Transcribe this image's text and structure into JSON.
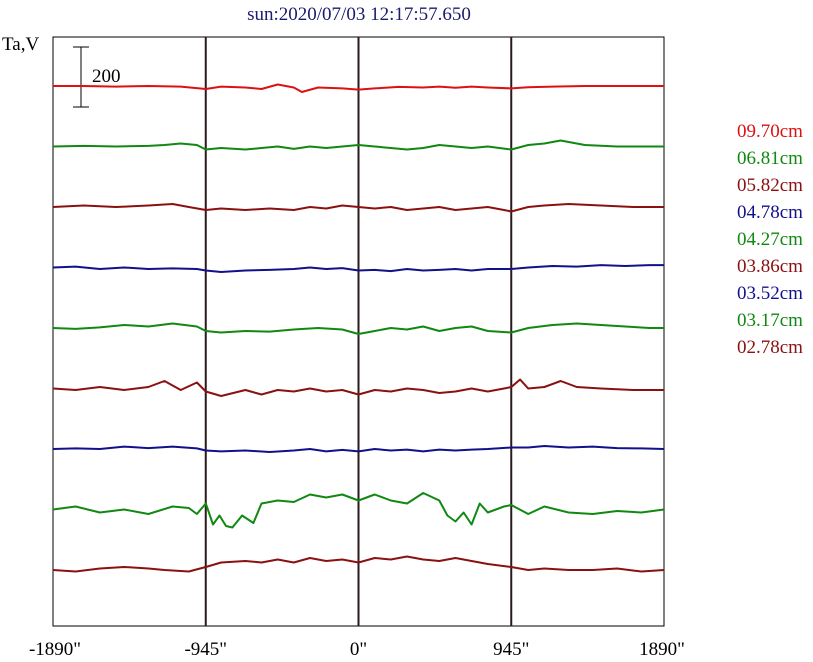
{
  "chart_data": {
    "type": "line",
    "title": "sun:2020/07/03 12:17:57.650",
    "ylabel": "Ta,V",
    "xlabel": "",
    "xlim": [
      -1890,
      1890
    ],
    "x_unit": "arcsec",
    "x_ticks": [
      -1890,
      -945,
      0,
      945,
      1890
    ],
    "x_tick_labels": [
      "-1890\"",
      "-945\"",
      "0\"",
      "945\"",
      "1890\""
    ],
    "vertical_lines_at": [
      -945,
      0,
      945
    ],
    "scale_bar": {
      "label": "200",
      "value": 200
    },
    "legend_position": "right",
    "series": [
      {
        "name": "09.70cm",
        "color": "#dd1111",
        "x": [
          -1890,
          -1700,
          -1500,
          -1300,
          -1100,
          -945,
          -850,
          -700,
          -600,
          -500,
          -400,
          -350,
          -250,
          -100,
          0,
          100,
          250,
          400,
          500,
          600,
          700,
          800,
          945,
          1050,
          1200,
          1400,
          1600,
          1890
        ],
        "y": [
          0,
          0,
          -2,
          0,
          -2,
          -10,
          -2,
          -5,
          -10,
          5,
          -5,
          -20,
          -5,
          -8,
          -12,
          -8,
          -3,
          -5,
          -2,
          -6,
          -2,
          -5,
          -8,
          -4,
          -2,
          0,
          0,
          0
        ]
      },
      {
        "name": "06.81cm",
        "color": "#118811",
        "x": [
          -1890,
          -1700,
          -1500,
          -1300,
          -1200,
          -1100,
          -1000,
          -945,
          -850,
          -700,
          -600,
          -500,
          -400,
          -300,
          -200,
          -100,
          0,
          100,
          200,
          300,
          400,
          500,
          600,
          700,
          800,
          945,
          1050,
          1150,
          1250,
          1400,
          1600,
          1890
        ],
        "y": [
          0,
          2,
          0,
          2,
          5,
          10,
          5,
          -10,
          -5,
          -10,
          -5,
          0,
          -8,
          0,
          -5,
          0,
          5,
          0,
          -5,
          -10,
          -5,
          5,
          0,
          -5,
          0,
          -10,
          5,
          10,
          20,
          5,
          0,
          0
        ]
      },
      {
        "name": "05.82cm",
        "color": "#8b1010",
        "x": [
          -1890,
          -1700,
          -1500,
          -1300,
          -1150,
          -1050,
          -945,
          -850,
          -700,
          -550,
          -400,
          -300,
          -200,
          -100,
          0,
          100,
          200,
          300,
          400,
          500,
          600,
          700,
          800,
          900,
          945,
          1050,
          1150,
          1300,
          1500,
          1700,
          1890
        ],
        "y": [
          0,
          5,
          0,
          5,
          10,
          0,
          -10,
          -5,
          -10,
          -5,
          -10,
          0,
          -5,
          5,
          0,
          -5,
          0,
          -10,
          -5,
          0,
          -10,
          -5,
          0,
          -10,
          -15,
          0,
          5,
          10,
          5,
          0,
          0
        ]
      },
      {
        "name": "04.78cm",
        "color": "#11118b",
        "x": [
          -1890,
          -1750,
          -1600,
          -1450,
          -1300,
          -1150,
          -1000,
          -945,
          -850,
          -700,
          -550,
          -400,
          -300,
          -200,
          -100,
          0,
          100,
          200,
          300,
          400,
          500,
          600,
          700,
          800,
          945,
          1050,
          1200,
          1350,
          1500,
          1650,
          1800,
          1890
        ],
        "y": [
          0,
          3,
          -5,
          0,
          -5,
          -3,
          -5,
          -10,
          -15,
          -10,
          -8,
          -5,
          0,
          -5,
          -2,
          -10,
          -8,
          -12,
          -5,
          -10,
          -8,
          -5,
          -10,
          -5,
          -5,
          0,
          5,
          3,
          8,
          5,
          8,
          8
        ]
      },
      {
        "name": "04.27cm",
        "color": "#118811",
        "x": [
          -1890,
          -1750,
          -1600,
          -1450,
          -1300,
          -1150,
          -1000,
          -945,
          -850,
          -700,
          -550,
          -400,
          -250,
          -100,
          0,
          100,
          200,
          300,
          400,
          500,
          600,
          700,
          800,
          945,
          1050,
          1200,
          1350,
          1500,
          1650,
          1800,
          1890
        ],
        "y": [
          0,
          -3,
          2,
          10,
          5,
          15,
          5,
          -10,
          -15,
          -10,
          -12,
          -5,
          0,
          -5,
          -20,
          -10,
          0,
          -5,
          5,
          -10,
          0,
          5,
          -10,
          -15,
          0,
          10,
          15,
          10,
          5,
          0,
          0
        ]
      },
      {
        "name": "03.86cm",
        "color": "#8b1010",
        "x": [
          -1890,
          -1750,
          -1600,
          -1450,
          -1300,
          -1200,
          -1100,
          -1000,
          -945,
          -850,
          -700,
          -600,
          -500,
          -400,
          -300,
          -200,
          -100,
          0,
          100,
          200,
          300,
          400,
          500,
          600,
          700,
          800,
          900,
          945,
          1000,
          1050,
          1150,
          1250,
          1350,
          1500,
          1700,
          1890
        ],
        "y": [
          0,
          -5,
          5,
          -5,
          5,
          25,
          -5,
          20,
          -10,
          -25,
          -5,
          -20,
          -5,
          -10,
          0,
          -10,
          -5,
          -20,
          -5,
          -10,
          0,
          -5,
          -15,
          -10,
          0,
          -10,
          0,
          5,
          30,
          0,
          5,
          25,
          5,
          0,
          -5,
          -5
        ]
      },
      {
        "name": "03.52cm",
        "color": "#11118b",
        "x": [
          -1890,
          -1750,
          -1600,
          -1450,
          -1300,
          -1150,
          -1000,
          -945,
          -850,
          -700,
          -550,
          -400,
          -300,
          -200,
          -100,
          0,
          100,
          200,
          300,
          400,
          500,
          600,
          700,
          800,
          945,
          1050,
          1150,
          1300,
          1450,
          1600,
          1750,
          1890
        ],
        "y": [
          0,
          2,
          0,
          8,
          3,
          8,
          2,
          -5,
          -8,
          -5,
          -10,
          -5,
          0,
          -8,
          -3,
          -8,
          0,
          -5,
          -2,
          -8,
          -2,
          -5,
          -2,
          0,
          5,
          5,
          10,
          5,
          8,
          3,
          2,
          0
        ]
      },
      {
        "name": "03.17cm",
        "color": "#118811",
        "x": [
          -1890,
          -1750,
          -1600,
          -1450,
          -1300,
          -1150,
          -1050,
          -1000,
          -945,
          -900,
          -860,
          -820,
          -780,
          -720,
          -650,
          -600,
          -500,
          -400,
          -300,
          -200,
          -100,
          0,
          100,
          200,
          300,
          400,
          500,
          550,
          600,
          650,
          700,
          750,
          800,
          850,
          900,
          945,
          1050,
          1150,
          1300,
          1450,
          1600,
          1750,
          1890
        ],
        "y": [
          0,
          10,
          -10,
          0,
          -15,
          10,
          5,
          -15,
          20,
          -50,
          -20,
          -55,
          -60,
          -20,
          -45,
          20,
          30,
          25,
          50,
          40,
          50,
          30,
          50,
          30,
          20,
          55,
          30,
          -20,
          -40,
          -10,
          -50,
          20,
          -10,
          0,
          10,
          15,
          -15,
          10,
          -10,
          -15,
          -5,
          -10,
          0
        ]
      },
      {
        "name": "02.78cm",
        "color": "#8b1010",
        "x": [
          -1890,
          -1750,
          -1600,
          -1450,
          -1300,
          -1200,
          -1050,
          -945,
          -850,
          -700,
          -600,
          -500,
          -400,
          -300,
          -200,
          -100,
          0,
          100,
          200,
          300,
          400,
          500,
          600,
          700,
          800,
          945,
          1050,
          1150,
          1300,
          1450,
          1600,
          1750,
          1890
        ],
        "y": [
          0,
          -5,
          5,
          10,
          5,
          0,
          -5,
          10,
          25,
          30,
          25,
          35,
          25,
          40,
          30,
          35,
          25,
          40,
          35,
          45,
          35,
          30,
          40,
          30,
          20,
          10,
          0,
          5,
          0,
          0,
          5,
          -5,
          0
        ]
      }
    ]
  }
}
